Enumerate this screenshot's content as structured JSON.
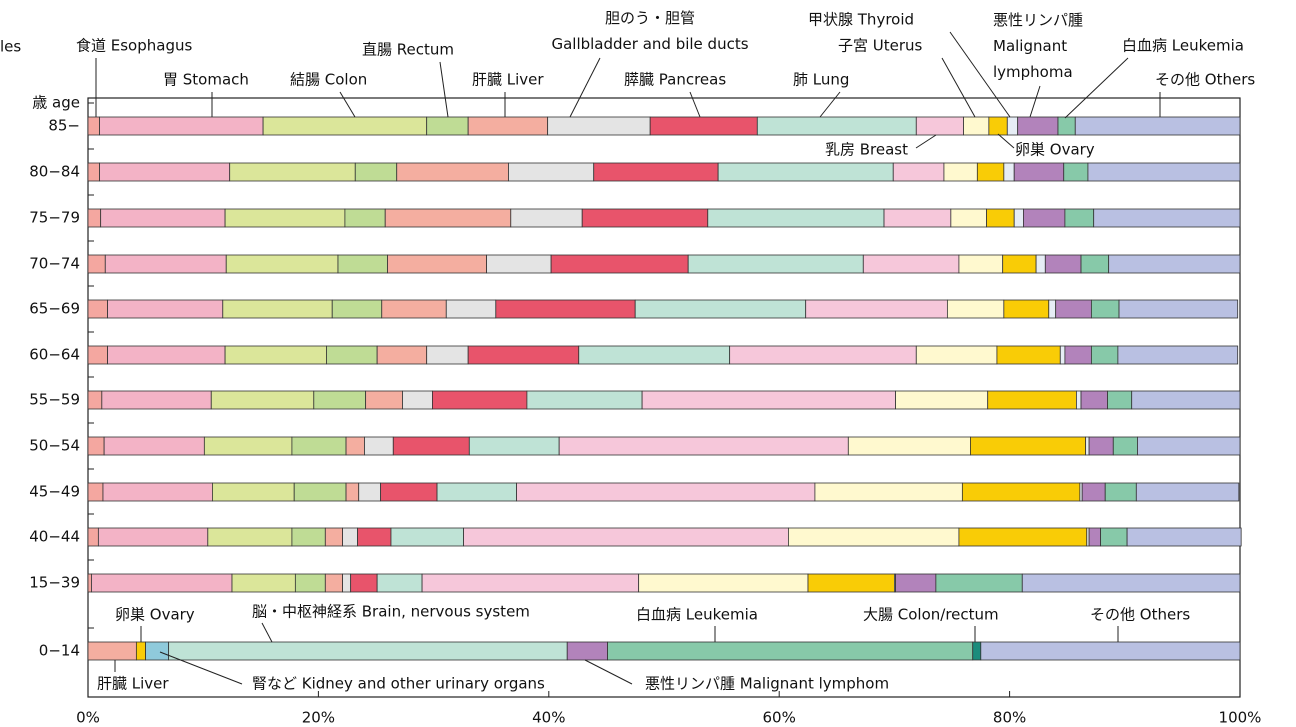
{
  "chart_data": [
    {
      "type": "stacked-bar",
      "title": "les",
      "ylabel": "歳 age",
      "categories": [
        "85−",
        "80−84",
        "75−79",
        "70−74",
        "65−69",
        "60−64",
        "55−59",
        "50−54",
        "45−49",
        "40−44",
        "15−39"
      ],
      "xlim": [
        0,
        100
      ],
      "series": [
        {
          "name": "食道 Esophagus",
          "color": "#f4a7a0",
          "values": [
            1.0,
            1.0,
            1.1,
            1.5,
            1.7,
            1.7,
            1.2,
            1.4,
            1.3,
            0.9,
            0.3
          ]
        },
        {
          "name": "胃 Stomach",
          "color": "#f3b3c6",
          "values": [
            14.2,
            11.3,
            10.8,
            10.5,
            10.0,
            10.2,
            9.5,
            8.7,
            9.5,
            9.5,
            12.2
          ]
        },
        {
          "name": "結腸 Colon",
          "color": "#dbe69a",
          "values": [
            14.2,
            10.9,
            10.4,
            9.7,
            9.5,
            8.8,
            8.9,
            7.6,
            7.1,
            7.3,
            5.5
          ]
        },
        {
          "name": "直腸 Rectum",
          "color": "#bfdc95",
          "values": [
            3.6,
            3.6,
            3.5,
            4.3,
            4.3,
            4.4,
            4.5,
            4.7,
            4.5,
            2.9,
            2.6
          ]
        },
        {
          "name": "肝臓 Liver",
          "color": "#f4aea0",
          "values": [
            6.9,
            9.7,
            10.9,
            8.6,
            5.6,
            4.3,
            3.2,
            1.6,
            1.1,
            1.5,
            1.5
          ]
        },
        {
          "name": "胆のう・胆管\nGallbladder and bile ducts",
          "color": "#e4e4e4",
          "values": [
            8.9,
            7.4,
            6.2,
            5.6,
            4.3,
            3.6,
            2.6,
            2.5,
            1.9,
            1.3,
            0.7
          ]
        },
        {
          "name": "膵臓 Pancreas",
          "color": "#e8546b",
          "values": [
            9.3,
            10.8,
            10.9,
            11.9,
            12.1,
            9.6,
            8.2,
            6.6,
            4.9,
            2.9,
            2.3
          ]
        },
        {
          "name": "肺 Lung",
          "color": "#bfe3d6",
          "values": [
            13.8,
            15.2,
            15.3,
            15.2,
            14.8,
            13.1,
            10.0,
            7.8,
            6.9,
            6.3,
            3.9
          ]
        },
        {
          "name": "乳房 Breast",
          "color": "#f6c7da",
          "values": [
            4.1,
            4.4,
            5.8,
            8.3,
            12.3,
            16.2,
            22.0,
            25.1,
            25.9,
            28.2,
            18.8
          ]
        },
        {
          "name": "子宮 Uterus",
          "color": "#fff9cf",
          "values": [
            2.2,
            2.9,
            3.1,
            3.8,
            4.9,
            7.0,
            8.0,
            10.6,
            12.8,
            14.8,
            14.7
          ]
        },
        {
          "name": "卵巣 Ovary",
          "color": "#f9cc06",
          "values": [
            1.6,
            2.3,
            2.4,
            2.9,
            3.9,
            5.5,
            7.7,
            10.0,
            10.2,
            11.1,
            7.5
          ]
        },
        {
          "name": "甲状腺 Thyroid",
          "color": "#e6edf5",
          "values": [
            0.9,
            0.9,
            0.8,
            0.8,
            0.6,
            0.4,
            0.4,
            0.3,
            0.2,
            0.2,
            0.1
          ]
        },
        {
          "name": "悪性リンパ腫\nMalignant\nlymphoma",
          "color": "#b283bb",
          "values": [
            3.5,
            4.3,
            3.6,
            3.1,
            3.1,
            2.3,
            2.3,
            2.1,
            2.0,
            1.0,
            3.5
          ]
        },
        {
          "name": "白血病 Leukemia",
          "color": "#87c9a9",
          "values": [
            1.5,
            2.1,
            2.5,
            2.4,
            2.4,
            2.3,
            2.1,
            2.1,
            2.7,
            2.3,
            7.5
          ]
        },
        {
          "name": "その他 Others",
          "color": "#b9c0e2",
          "values": [
            14.3,
            13.2,
            12.7,
            11.4,
            10.3,
            10.4,
            9.4,
            8.9,
            8.9,
            9.9,
            18.9
          ]
        }
      ]
    },
    {
      "type": "stacked-bar",
      "categories": [
        "0−14"
      ],
      "xlim": [
        0,
        100
      ],
      "xticks": [
        {
          "value": 0,
          "label": "0%"
        },
        {
          "value": 20,
          "label": "20%"
        },
        {
          "value": 40,
          "label": "40%"
        },
        {
          "value": 60,
          "label": "60%"
        },
        {
          "value": 80,
          "label": "80%"
        },
        {
          "value": 100,
          "label": "100%"
        }
      ],
      "series": [
        {
          "name": "肝臓 Liver",
          "color": "#f4aea0",
          "values": [
            4.2
          ]
        },
        {
          "name": "卵巣 Ovary",
          "color": "#f9cc06",
          "values": [
            0.8
          ]
        },
        {
          "name": "腎など Kidney and other urinary organs",
          "color": "#8fcadb",
          "values": [
            2.0
          ]
        },
        {
          "name": "脳・中枢神経系 Brain, nervous system",
          "color": "#bfe3d6",
          "values": [
            34.6
          ]
        },
        {
          "name": "悪性リンパ腫 Malignant lymphom",
          "color": "#b283bb",
          "values": [
            3.5
          ]
        },
        {
          "name": "白血病 Leukemia",
          "color": "#87c9a9",
          "values": [
            31.7
          ]
        },
        {
          "name": "大腸 Colon/rectum",
          "color": "#1b8c7c",
          "values": [
            0.7
          ]
        },
        {
          "name": "その他 Others",
          "color": "#b9c0e2",
          "values": [
            22.5
          ]
        }
      ]
    }
  ]
}
